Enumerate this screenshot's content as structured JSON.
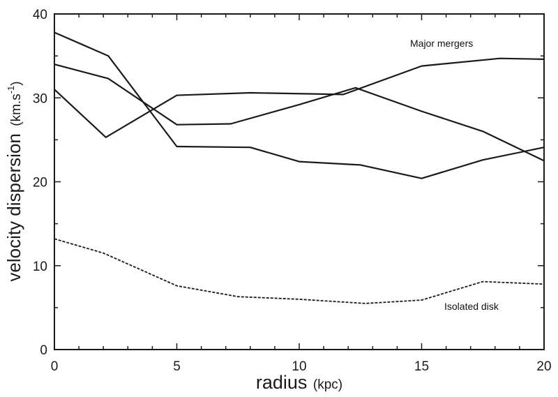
{
  "chart_data": {
    "type": "line",
    "xlabel": "radius",
    "xlabel_unit": "(kpc)",
    "ylabel": "velocity dispersion",
    "ylabel_unit_base": "(km.s",
    "ylabel_unit_sup": "-1",
    "ylabel_unit_end": ")",
    "xlim": [
      0,
      20
    ],
    "ylim": [
      0,
      40
    ],
    "x_ticks": [
      0,
      5,
      10,
      15,
      20
    ],
    "y_ticks": [
      0,
      10,
      20,
      30,
      40
    ],
    "grid": false,
    "annotations": {
      "major_mergers": "Major mergers",
      "isolated_disk": "Isolated disk"
    },
    "series": [
      {
        "group": "major_mergers",
        "style": "solid",
        "points": [
          [
            0,
            37.8
          ],
          [
            2.2,
            35.0
          ],
          [
            5.0,
            24.2
          ],
          [
            8.0,
            24.1
          ],
          [
            10.0,
            22.4
          ],
          [
            12.5,
            22.0
          ],
          [
            15.0,
            20.4
          ],
          [
            17.5,
            22.6
          ],
          [
            20.0,
            24.1
          ]
        ]
      },
      {
        "group": "major_mergers",
        "style": "solid",
        "points": [
          [
            0,
            34.0
          ],
          [
            2.2,
            32.3
          ],
          [
            5.0,
            26.8
          ],
          [
            7.2,
            26.9
          ],
          [
            10.0,
            29.2
          ],
          [
            12.3,
            31.2
          ],
          [
            15.0,
            28.4
          ],
          [
            17.5,
            26.0
          ],
          [
            20.0,
            22.5
          ]
        ]
      },
      {
        "group": "major_mergers",
        "style": "solid",
        "points": [
          [
            0,
            31.0
          ],
          [
            2.1,
            25.3
          ],
          [
            5.0,
            30.3
          ],
          [
            8.0,
            30.6
          ],
          [
            11.8,
            30.4
          ],
          [
            15.0,
            33.8
          ],
          [
            18.2,
            34.7
          ],
          [
            20.0,
            34.6
          ]
        ]
      },
      {
        "group": "isolated_disk",
        "style": "dashed",
        "points": [
          [
            0,
            13.2
          ],
          [
            2.0,
            11.5
          ],
          [
            5.0,
            7.6
          ],
          [
            7.5,
            6.3
          ],
          [
            10.0,
            6.0
          ],
          [
            12.7,
            5.5
          ],
          [
            15.0,
            5.9
          ],
          [
            17.5,
            8.1
          ],
          [
            20.0,
            7.8
          ]
        ]
      }
    ]
  }
}
